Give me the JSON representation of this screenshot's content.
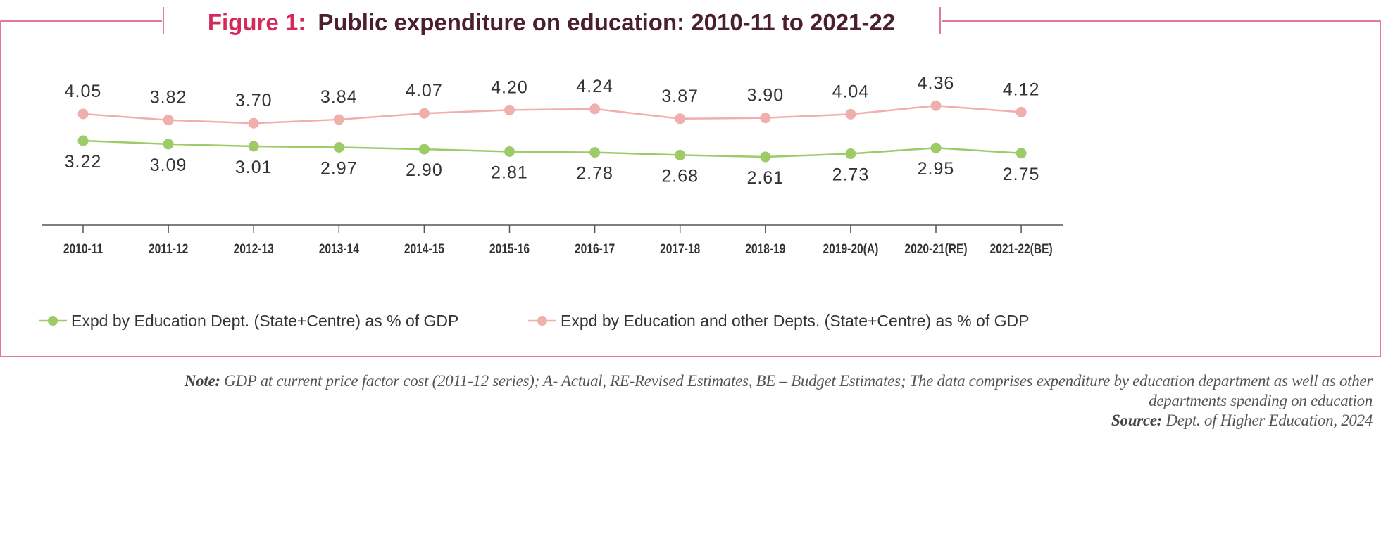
{
  "chart_data": {
    "type": "line",
    "title_prefix": "Figure 1:",
    "title": "Public expenditure on education: 2010-11 to 2021-22",
    "categories": [
      "2010-11",
      "2011-12",
      "2012-13",
      "2013-14",
      "2014-15",
      "2015-16",
      "2016-17",
      "2017-18",
      "2018-19",
      "2019-20(A)",
      "2020-21(RE)",
      "2021-22(BE)"
    ],
    "series": [
      {
        "name": "Expd by Education and other Depts. (State+Centre) as % of GDP",
        "color": "#f0aeac",
        "values": [
          4.05,
          3.82,
          3.7,
          3.84,
          4.07,
          4.2,
          4.24,
          3.87,
          3.9,
          4.04,
          4.36,
          4.12
        ]
      },
      {
        "name": "Expd by Education Dept. (State+Centre) as % of GDP",
        "color": "#9ccb68",
        "values": [
          3.22,
          3.09,
          3.01,
          2.97,
          2.9,
          2.81,
          2.78,
          2.68,
          2.61,
          2.73,
          2.95,
          2.75
        ]
      }
    ],
    "data_labels": true,
    "grid": false,
    "legend_placement": "bottom"
  },
  "colors": {
    "frame": "#d94f75",
    "title_accent": "#d42a5b",
    "title_dark": "#4b1f2c"
  },
  "note": {
    "label": "Note:",
    "text": "GDP at current price factor cost (2011-12 series); A- Actual, RE-Revised Estimates, BE – Budget Estimates; The data comprises expenditure by education department as well as other departments spending on education",
    "source_label": "Source:",
    "source": "Dept. of Higher Education, 2024"
  }
}
